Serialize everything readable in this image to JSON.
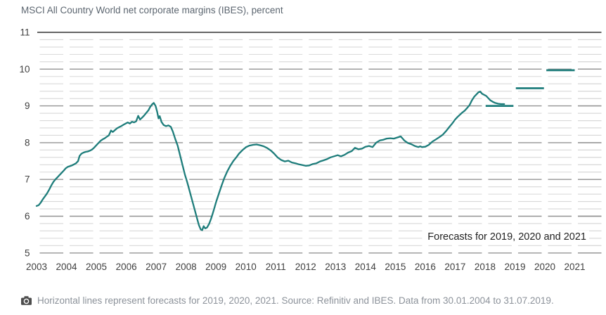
{
  "title": "MSCI All Country World net corporate margins (IBES), percent",
  "annotation": "Forecasts for 2019, 2020 and 2021",
  "caption": {
    "icon": "camera-icon",
    "text": "Horizontal lines represent forecasts for 2019, 2020, 2021. Source: Refinitiv and IBES. Data from 30.01.2004 to 31.07.2019."
  },
  "colors": {
    "series_line": "#1e7d7b",
    "forecast_line": "#1e7d7b",
    "grid_minor": "#d8d8d8",
    "grid_major": "#949494",
    "grid_top": "#4f4f4f",
    "tick_label": "#3f3f3f",
    "title_text": "#5c6670",
    "caption_text": "#8c929a",
    "annotation_text": "#222222"
  },
  "chart_data": {
    "type": "line",
    "title": "MSCI All Country World net corporate margins (IBES), percent",
    "xlabel": "",
    "ylabel": "percent",
    "ylim": [
      5,
      11
    ],
    "y_ticks": [
      5,
      6,
      7,
      8,
      9,
      10,
      11
    ],
    "minor_grid_step": 0.2,
    "grid": "dashed-segments-broken-at-year-ticks",
    "legend_position": "none",
    "x_tick_labels": [
      "2003",
      "2004",
      "2005",
      "2006",
      "2007",
      "2008",
      "2009",
      "2010",
      "2011",
      "2012",
      "2013",
      "2014",
      "2015",
      "2016",
      "2017",
      "2018",
      "2019",
      "2020",
      "2021"
    ],
    "series": [
      {
        "name": "MSCI ACWI net corporate margin (IBES), percent",
        "points": [
          [
            0.0,
            6.28
          ],
          [
            0.07,
            6.3
          ],
          [
            0.14,
            6.37
          ],
          [
            0.21,
            6.46
          ],
          [
            0.28,
            6.54
          ],
          [
            0.35,
            6.62
          ],
          [
            0.42,
            6.72
          ],
          [
            0.49,
            6.83
          ],
          [
            0.56,
            6.93
          ],
          [
            0.63,
            7.0
          ],
          [
            0.7,
            7.06
          ],
          [
            0.77,
            7.12
          ],
          [
            0.84,
            7.18
          ],
          [
            0.91,
            7.24
          ],
          [
            0.97,
            7.3
          ],
          [
            1.04,
            7.34
          ],
          [
            1.11,
            7.36
          ],
          [
            1.18,
            7.38
          ],
          [
            1.25,
            7.41
          ],
          [
            1.32,
            7.44
          ],
          [
            1.39,
            7.5
          ],
          [
            1.44,
            7.64
          ],
          [
            1.5,
            7.7
          ],
          [
            1.57,
            7.73
          ],
          [
            1.64,
            7.75
          ],
          [
            1.71,
            7.76
          ],
          [
            1.78,
            7.78
          ],
          [
            1.85,
            7.81
          ],
          [
            1.92,
            7.86
          ],
          [
            2.0,
            7.93
          ],
          [
            2.07,
            7.99
          ],
          [
            2.14,
            8.05
          ],
          [
            2.21,
            8.09
          ],
          [
            2.28,
            8.12
          ],
          [
            2.35,
            8.16
          ],
          [
            2.42,
            8.2
          ],
          [
            2.49,
            8.33
          ],
          [
            2.55,
            8.29
          ],
          [
            2.62,
            8.34
          ],
          [
            2.69,
            8.39
          ],
          [
            2.76,
            8.42
          ],
          [
            2.83,
            8.45
          ],
          [
            2.91,
            8.49
          ],
          [
            2.98,
            8.52
          ],
          [
            3.05,
            8.55
          ],
          [
            3.12,
            8.52
          ],
          [
            3.19,
            8.57
          ],
          [
            3.26,
            8.55
          ],
          [
            3.33,
            8.58
          ],
          [
            3.4,
            8.73
          ],
          [
            3.46,
            8.63
          ],
          [
            3.53,
            8.68
          ],
          [
            3.6,
            8.74
          ],
          [
            3.67,
            8.81
          ],
          [
            3.74,
            8.88
          ],
          [
            3.8,
            8.97
          ],
          [
            3.86,
            9.04
          ],
          [
            3.92,
            9.08
          ],
          [
            3.98,
            9.0
          ],
          [
            4.03,
            8.85
          ],
          [
            4.08,
            8.66
          ],
          [
            4.12,
            8.72
          ],
          [
            4.18,
            8.56
          ],
          [
            4.25,
            8.48
          ],
          [
            4.33,
            8.45
          ],
          [
            4.41,
            8.47
          ],
          [
            4.49,
            8.43
          ],
          [
            4.56,
            8.3
          ],
          [
            4.64,
            8.1
          ],
          [
            4.72,
            7.92
          ],
          [
            4.8,
            7.66
          ],
          [
            4.88,
            7.4
          ],
          [
            4.96,
            7.14
          ],
          [
            5.04,
            6.92
          ],
          [
            5.12,
            6.68
          ],
          [
            5.2,
            6.44
          ],
          [
            5.28,
            6.2
          ],
          [
            5.36,
            5.96
          ],
          [
            5.43,
            5.76
          ],
          [
            5.49,
            5.64
          ],
          [
            5.54,
            5.62
          ],
          [
            5.59,
            5.73
          ],
          [
            5.64,
            5.67
          ],
          [
            5.7,
            5.69
          ],
          [
            5.77,
            5.79
          ],
          [
            5.84,
            5.94
          ],
          [
            5.92,
            6.15
          ],
          [
            6.01,
            6.4
          ],
          [
            6.1,
            6.62
          ],
          [
            6.19,
            6.84
          ],
          [
            6.28,
            7.04
          ],
          [
            6.38,
            7.22
          ],
          [
            6.47,
            7.36
          ],
          [
            6.58,
            7.5
          ],
          [
            6.68,
            7.6
          ],
          [
            6.77,
            7.7
          ],
          [
            6.89,
            7.8
          ],
          [
            7.01,
            7.88
          ],
          [
            7.12,
            7.92
          ],
          [
            7.24,
            7.94
          ],
          [
            7.36,
            7.95
          ],
          [
            7.48,
            7.93
          ],
          [
            7.6,
            7.9
          ],
          [
            7.72,
            7.85
          ],
          [
            7.83,
            7.79
          ],
          [
            7.95,
            7.7
          ],
          [
            8.06,
            7.6
          ],
          [
            8.18,
            7.53
          ],
          [
            8.3,
            7.49
          ],
          [
            8.42,
            7.51
          ],
          [
            8.54,
            7.46
          ],
          [
            8.66,
            7.44
          ],
          [
            8.78,
            7.41
          ],
          [
            8.89,
            7.39
          ],
          [
            9.0,
            7.37
          ],
          [
            9.12,
            7.38
          ],
          [
            9.24,
            7.42
          ],
          [
            9.36,
            7.44
          ],
          [
            9.48,
            7.49
          ],
          [
            9.6,
            7.52
          ],
          [
            9.71,
            7.55
          ],
          [
            9.83,
            7.6
          ],
          [
            9.95,
            7.63
          ],
          [
            10.07,
            7.66
          ],
          [
            10.18,
            7.63
          ],
          [
            10.3,
            7.67
          ],
          [
            10.42,
            7.73
          ],
          [
            10.54,
            7.77
          ],
          [
            10.65,
            7.86
          ],
          [
            10.77,
            7.82
          ],
          [
            10.89,
            7.84
          ],
          [
            11.0,
            7.89
          ],
          [
            11.12,
            7.91
          ],
          [
            11.24,
            7.88
          ],
          [
            11.36,
            8.0
          ],
          [
            11.48,
            8.06
          ],
          [
            11.6,
            8.08
          ],
          [
            11.71,
            8.11
          ],
          [
            11.83,
            8.12
          ],
          [
            11.95,
            8.11
          ],
          [
            12.06,
            8.14
          ],
          [
            12.18,
            8.17
          ],
          [
            12.3,
            8.06
          ],
          [
            12.42,
            7.99
          ],
          [
            12.53,
            7.96
          ],
          [
            12.65,
            7.91
          ],
          [
            12.77,
            7.88
          ],
          [
            12.83,
            7.9
          ],
          [
            12.89,
            7.88
          ],
          [
            13.0,
            7.89
          ],
          [
            13.12,
            7.94
          ],
          [
            13.24,
            8.03
          ],
          [
            13.36,
            8.09
          ],
          [
            13.47,
            8.15
          ],
          [
            13.59,
            8.22
          ],
          [
            13.7,
            8.32
          ],
          [
            13.8,
            8.42
          ],
          [
            13.9,
            8.52
          ],
          [
            14.0,
            8.63
          ],
          [
            14.08,
            8.7
          ],
          [
            14.16,
            8.76
          ],
          [
            14.24,
            8.82
          ],
          [
            14.32,
            8.87
          ],
          [
            14.4,
            8.94
          ],
          [
            14.48,
            9.02
          ],
          [
            14.56,
            9.15
          ],
          [
            14.64,
            9.25
          ],
          [
            14.72,
            9.32
          ],
          [
            14.78,
            9.37
          ],
          [
            14.84,
            9.39
          ],
          [
            14.9,
            9.33
          ],
          [
            14.97,
            9.3
          ],
          [
            15.04,
            9.27
          ],
          [
            15.11,
            9.21
          ],
          [
            15.18,
            9.15
          ],
          [
            15.26,
            9.11
          ],
          [
            15.34,
            9.08
          ],
          [
            15.44,
            9.06
          ],
          [
            15.54,
            9.05
          ],
          [
            15.64,
            9.05
          ]
        ]
      }
    ],
    "forecasts": [
      {
        "label": "2019",
        "value": 9.0,
        "x_start": 15.02,
        "x_end": 15.95
      },
      {
        "label": "2020",
        "value": 9.48,
        "x_start": 16.03,
        "x_end": 16.97
      },
      {
        "label": "2021",
        "value": 9.97,
        "x_start": 17.05,
        "x_end": 18.0
      }
    ]
  }
}
